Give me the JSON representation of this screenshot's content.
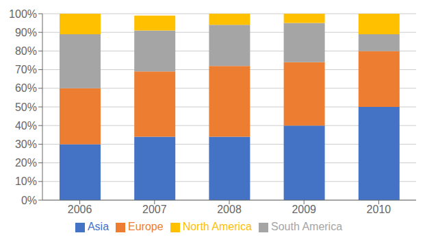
{
  "chart_data": {
    "type": "bar",
    "stacked": true,
    "categories": [
      "2006",
      "2007",
      "2008",
      "2009",
      "2010"
    ],
    "series": [
      {
        "name": "Asia",
        "color": "#4472C4",
        "values": [
          30,
          34,
          34,
          40,
          50
        ]
      },
      {
        "name": "Europe",
        "color": "#ED7D31",
        "values": [
          30,
          35,
          38,
          34,
          30
        ]
      },
      {
        "name": "South America",
        "color": "#A5A5A5",
        "values": [
          29,
          22,
          22,
          21,
          9
        ]
      },
      {
        "name": "North America",
        "color": "#FFC000",
        "values": [
          11,
          8,
          6,
          5,
          11
        ]
      }
    ],
    "ylim": [
      0,
      100
    ],
    "yticks": [
      {
        "value": 0,
        "label": "0%"
      },
      {
        "value": 10,
        "label": "10%"
      },
      {
        "value": 20,
        "label": "20%"
      },
      {
        "value": 30,
        "label": "30%"
      },
      {
        "value": 40,
        "label": "40%"
      },
      {
        "value": 50,
        "label": "50%"
      },
      {
        "value": 60,
        "label": "60%"
      },
      {
        "value": 70,
        "label": "70%"
      },
      {
        "value": 80,
        "label": "80%"
      },
      {
        "value": 90,
        "label": "90%"
      },
      {
        "value": 100,
        "label": "100%"
      }
    ],
    "grid": true,
    "legend": "bottom"
  }
}
